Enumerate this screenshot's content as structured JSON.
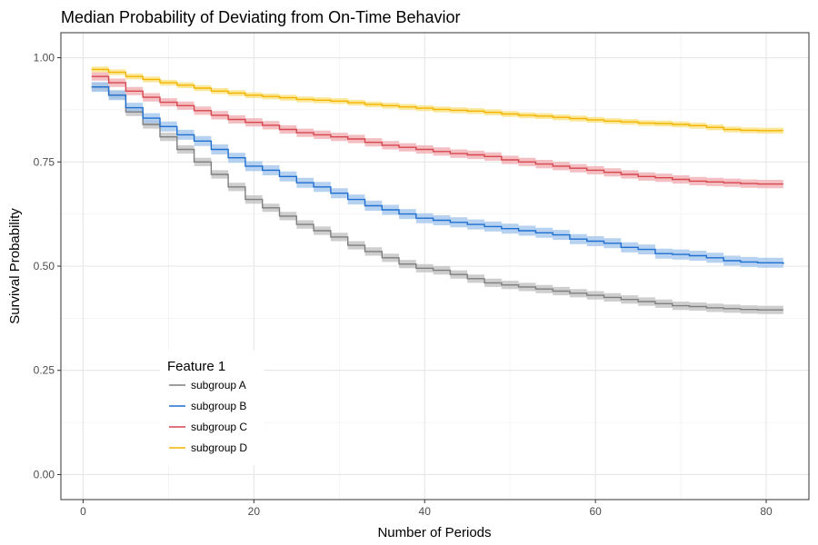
{
  "chart_data": {
    "type": "line",
    "step": true,
    "title": "Median Probability of Deviating from On-Time Behavior",
    "xlabel": "Number of Periods",
    "ylabel": "Survival Probability",
    "xlim": [
      -2.6,
      85
    ],
    "ylim": [
      -0.06,
      1.06
    ],
    "xticks": [
      0,
      20,
      40,
      60,
      80
    ],
    "xtick_labels": [
      "0",
      "20",
      "40",
      "60",
      "80"
    ],
    "yticks": [
      0,
      0.25,
      0.5,
      0.75,
      1.0
    ],
    "ytick_labels": [
      "0.00",
      "0.25",
      "0.50",
      "0.75",
      "1.00"
    ],
    "grid": true,
    "confidence_band": true,
    "legend": {
      "title": "Feature 1",
      "placement": "bottom-left inside"
    },
    "series": [
      {
        "name": "subgroup A",
        "color": "#7f7f7f",
        "band_color": "#bdbdbd",
        "x": [
          1,
          3,
          5,
          7,
          9,
          11,
          13,
          15,
          17,
          19,
          21,
          23,
          25,
          27,
          29,
          31,
          33,
          35,
          37,
          39,
          41,
          43,
          45,
          47,
          49,
          51,
          53,
          55,
          57,
          59,
          61,
          63,
          65,
          67,
          69,
          71,
          73,
          75,
          77,
          79,
          82
        ],
        "y": [
          0.93,
          0.91,
          0.87,
          0.84,
          0.81,
          0.78,
          0.75,
          0.72,
          0.69,
          0.66,
          0.64,
          0.62,
          0.6,
          0.585,
          0.57,
          0.55,
          0.535,
          0.52,
          0.505,
          0.495,
          0.49,
          0.48,
          0.47,
          0.46,
          0.455,
          0.45,
          0.445,
          0.44,
          0.435,
          0.43,
          0.425,
          0.42,
          0.415,
          0.41,
          0.405,
          0.403,
          0.4,
          0.398,
          0.396,
          0.395,
          0.395
        ],
        "band": 0.01
      },
      {
        "name": "subgroup B",
        "color": "#1f6fd1",
        "band_color": "#9fc3ec",
        "x": [
          1,
          3,
          5,
          7,
          9,
          11,
          13,
          15,
          17,
          19,
          21,
          23,
          25,
          27,
          29,
          31,
          33,
          35,
          37,
          39,
          41,
          43,
          45,
          47,
          49,
          51,
          53,
          55,
          57,
          59,
          61,
          63,
          65,
          67,
          69,
          71,
          73,
          75,
          77,
          79,
          82
        ],
        "y": [
          0.93,
          0.91,
          0.88,
          0.855,
          0.835,
          0.815,
          0.8,
          0.78,
          0.76,
          0.74,
          0.73,
          0.715,
          0.7,
          0.69,
          0.675,
          0.66,
          0.645,
          0.635,
          0.625,
          0.615,
          0.61,
          0.605,
          0.6,
          0.595,
          0.59,
          0.585,
          0.58,
          0.575,
          0.565,
          0.56,
          0.555,
          0.545,
          0.54,
          0.53,
          0.528,
          0.525,
          0.52,
          0.513,
          0.51,
          0.508,
          0.505
        ],
        "band": 0.012
      },
      {
        "name": "subgroup C",
        "color": "#d6474e",
        "band_color": "#f0a9ad",
        "x": [
          1,
          3,
          5,
          7,
          9,
          11,
          13,
          15,
          17,
          19,
          21,
          23,
          25,
          27,
          29,
          31,
          33,
          35,
          37,
          39,
          41,
          43,
          45,
          47,
          49,
          51,
          53,
          55,
          57,
          59,
          61,
          63,
          65,
          67,
          69,
          71,
          73,
          75,
          77,
          79,
          82
        ],
        "y": [
          0.955,
          0.94,
          0.92,
          0.905,
          0.893,
          0.885,
          0.873,
          0.862,
          0.852,
          0.845,
          0.838,
          0.828,
          0.82,
          0.815,
          0.81,
          0.805,
          0.797,
          0.79,
          0.785,
          0.78,
          0.775,
          0.77,
          0.767,
          0.763,
          0.755,
          0.75,
          0.745,
          0.74,
          0.735,
          0.73,
          0.725,
          0.72,
          0.715,
          0.712,
          0.708,
          0.704,
          0.702,
          0.7,
          0.698,
          0.697,
          0.697
        ],
        "band": 0.01
      },
      {
        "name": "subgroup D",
        "color": "#f2b400",
        "band_color": "#fbe07a",
        "x": [
          1,
          3,
          5,
          7,
          9,
          11,
          13,
          15,
          17,
          19,
          21,
          23,
          25,
          27,
          29,
          31,
          33,
          35,
          37,
          39,
          41,
          43,
          45,
          47,
          49,
          51,
          53,
          55,
          57,
          59,
          61,
          63,
          65,
          67,
          69,
          71,
          73,
          75,
          77,
          79,
          82
        ],
        "y": [
          0.972,
          0.965,
          0.955,
          0.948,
          0.94,
          0.934,
          0.927,
          0.92,
          0.915,
          0.91,
          0.907,
          0.904,
          0.9,
          0.898,
          0.896,
          0.892,
          0.888,
          0.885,
          0.882,
          0.879,
          0.876,
          0.874,
          0.872,
          0.869,
          0.865,
          0.862,
          0.86,
          0.857,
          0.854,
          0.851,
          0.848,
          0.846,
          0.843,
          0.842,
          0.84,
          0.837,
          0.833,
          0.828,
          0.826,
          0.825,
          0.825
        ],
        "band": 0.007
      }
    ]
  }
}
